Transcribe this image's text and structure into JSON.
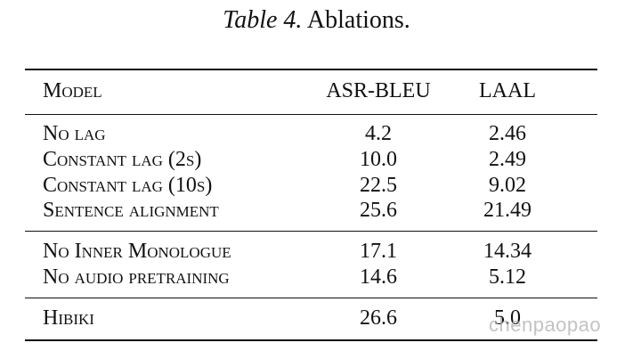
{
  "caption": {
    "label": "Table 4.",
    "text": "Ablations."
  },
  "table": {
    "headers": {
      "model": "Model",
      "asr_bleu": "ASR-BLEU",
      "laal": "LAAL"
    },
    "rows": [
      {
        "model": "No lag",
        "asr_bleu": "4.2",
        "laal": "2.46"
      },
      {
        "model": "Constant lag (2s)",
        "asr_bleu": "10.0",
        "laal": "2.49"
      },
      {
        "model": "Constant lag (10s)",
        "asr_bleu": "22.5",
        "laal": "9.02"
      },
      {
        "model": "Sentence alignment",
        "asr_bleu": "25.6",
        "laal": "21.49"
      },
      {
        "model": "No Inner Monologue",
        "asr_bleu": "17.1",
        "laal": "14.34"
      },
      {
        "model": "No audio pretraining",
        "asr_bleu": "14.6",
        "laal": "5.12"
      },
      {
        "model": "Hibiki",
        "asr_bleu": "26.6",
        "laal": "5.0"
      }
    ]
  },
  "watermark": "chenpaopao"
}
